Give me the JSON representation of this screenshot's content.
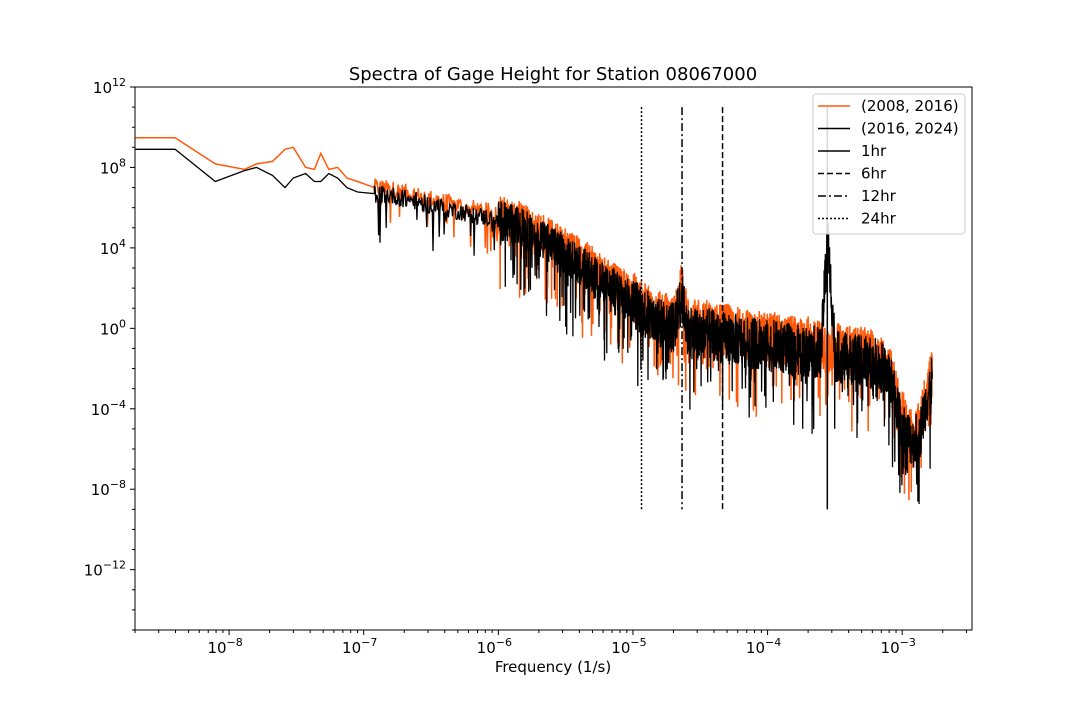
{
  "chart_data": {
    "type": "line",
    "title": "Spectra of Gage Height for Station 08067000",
    "xlabel": "Frequency (1/s)",
    "ylabel": "",
    "xscale": "log",
    "yscale": "log",
    "xlim": [
      2e-09,
      0.0033
    ],
    "ylim": [
      1e-15,
      1000000000000.0
    ],
    "grid": false,
    "legend": {
      "location": "upper right"
    },
    "x_ticks": [
      {
        "value": 1e-08,
        "base": "10",
        "exp": "−8"
      },
      {
        "value": 1e-07,
        "base": "10",
        "exp": "−7"
      },
      {
        "value": 1e-06,
        "base": "10",
        "exp": "−6"
      },
      {
        "value": 1e-05,
        "base": "10",
        "exp": "−5"
      },
      {
        "value": 0.0001,
        "base": "10",
        "exp": "−4"
      },
      {
        "value": 0.001,
        "base": "10",
        "exp": "−3"
      }
    ],
    "y_ticks": [
      {
        "value": 1000000000000.0,
        "base": "10",
        "exp": "12"
      },
      {
        "value": 100000000.0,
        "base": "10",
        "exp": "8"
      },
      {
        "value": 10000.0,
        "base": "10",
        "exp": "4"
      },
      {
        "value": 1,
        "base": "10",
        "exp": "0"
      },
      {
        "value": 0.0001,
        "base": "10",
        "exp": "−4"
      },
      {
        "value": 1e-08,
        "base": "10",
        "exp": "−8"
      },
      {
        "value": 1e-12,
        "base": "10",
        "exp": "−12"
      }
    ],
    "series": [
      {
        "name": "(2008, 2016)",
        "color": "#ff5a0a",
        "x": [
          2e-09,
          3.97e-09,
          7.9e-09,
          1.3e-08,
          1.6e-08,
          2.1e-08,
          2.6e-08,
          3e-08,
          3.7e-08,
          4.3e-08,
          4.8e-08,
          5.5e-08,
          6.4e-08,
          7.5e-08,
          9e-08,
          1.2e-07,
          1.6e-07,
          2.2e-07,
          3e-07,
          4.5e-07,
          7e-07,
          1e-06,
          1.5e-06,
          2e-06,
          3e-06,
          4e-06,
          5e-06,
          6e-06,
          8e-06,
          1e-05,
          1.2e-05,
          1.5e-05,
          1.8e-05,
          2e-05,
          2.3e-05,
          2.6e-05,
          3e-05,
          3.5e-05,
          4e-05,
          4.6e-05,
          5.5e-05,
          7e-05,
          9e-05,
          0.00012,
          0.00016,
          0.0002,
          0.00025,
          0.000278,
          0.00032,
          0.0004,
          0.0005,
          0.0006,
          0.0007,
          0.0008,
          0.00088,
          0.00095,
          0.001,
          0.0011,
          0.0012,
          0.00135,
          0.0015,
          0.00167
        ],
        "y": [
          3000000000.0,
          3000000000.0,
          150000000.0,
          80000000.0,
          150000000.0,
          200000000.0,
          800000000.0,
          1000000000.0,
          100000000.0,
          80000000.0,
          500000000.0,
          80000000.0,
          100000000.0,
          30000000.0,
          20000000.0,
          10000000.0,
          8000000.0,
          5000000.0,
          3000000.0,
          1500000.0,
          800000.0,
          500000.0,
          200000.0,
          70000.0,
          15000.0,
          4000,
          1200,
          400,
          120,
          40,
          10,
          4,
          3,
          2,
          100,
          1,
          1.5,
          1.5,
          1,
          0.9,
          0.8,
          0.5,
          0.4,
          0.3,
          0.2,
          0.2,
          0.15,
          0.12,
          0.1,
          0.08,
          0.06,
          0.05,
          0.03,
          0.01,
          0.001,
          0.0001,
          5e-05,
          1e-05,
          5e-06,
          1e-05,
          0.0005,
          0.005
        ]
      },
      {
        "name": "(2016, 2024)",
        "color": "#000000",
        "x": [
          2e-09,
          3.97e-09,
          7.9e-09,
          1.3e-08,
          1.6e-08,
          2.1e-08,
          2.6e-08,
          3e-08,
          3.7e-08,
          4.3e-08,
          4.8e-08,
          5.5e-08,
          6.4e-08,
          7.5e-08,
          9e-08,
          1.2e-07,
          1.6e-07,
          2.2e-07,
          3e-07,
          4.5e-07,
          7e-07,
          1e-06,
          1.5e-06,
          2e-06,
          3e-06,
          4e-06,
          5e-06,
          6e-06,
          8e-06,
          1e-05,
          1.2e-05,
          1.5e-05,
          1.8e-05,
          2e-05,
          2.3e-05,
          2.6e-05,
          3e-05,
          3.5e-05,
          4e-05,
          4.6e-05,
          5.5e-05,
          7e-05,
          9e-05,
          0.00012,
          0.00016,
          0.0002,
          0.00025,
          0.000278,
          0.00032,
          0.0004,
          0.0005,
          0.0006,
          0.0007,
          0.0008,
          0.00088,
          0.00095,
          0.001,
          0.0011,
          0.0012,
          0.00135,
          0.0015,
          0.00167
        ],
        "y": [
          800000000.0,
          800000000.0,
          20000000.0,
          70000000.0,
          100000000.0,
          40000000.0,
          10000000.0,
          30000000.0,
          50000000.0,
          20000000.0,
          20000000.0,
          50000000.0,
          30000000.0,
          10000000.0,
          6000000.0,
          5000000.0,
          4000000.0,
          2500000.0,
          1500000.0,
          800000.0,
          400000.0,
          250000.0,
          100000.0,
          30000.0,
          6000,
          1500,
          500,
          180,
          60,
          20,
          6,
          2,
          1.2,
          1,
          40,
          0.5,
          0.6,
          0.6,
          0.4,
          0.35,
          0.3,
          0.2,
          0.15,
          0.12,
          0.08,
          0.07,
          0.06,
          50000,
          0.04,
          0.03,
          0.025,
          0.02,
          0.012,
          0.004,
          0.0004,
          5e-05,
          2e-05,
          5e-06,
          2e-06,
          5e-06,
          0.0002,
          0.003
        ]
      }
    ],
    "vlines": [
      {
        "name": "1hr",
        "x": 0.00027778,
        "y_range": [
          1e-09,
          100000000000.0
        ],
        "style": "solid"
      },
      {
        "name": "6hr",
        "x": 4.6296e-05,
        "y_range": [
          1e-09,
          100000000000.0
        ],
        "style": "dashed"
      },
      {
        "name": "12hr",
        "x": 2.3148e-05,
        "y_range": [
          1e-09,
          100000000000.0
        ],
        "style": "dashdot"
      },
      {
        "name": "24hr",
        "x": 1.1574e-05,
        "y_range": [
          1e-09,
          100000000000.0
        ],
        "style": "dotted"
      }
    ]
  }
}
